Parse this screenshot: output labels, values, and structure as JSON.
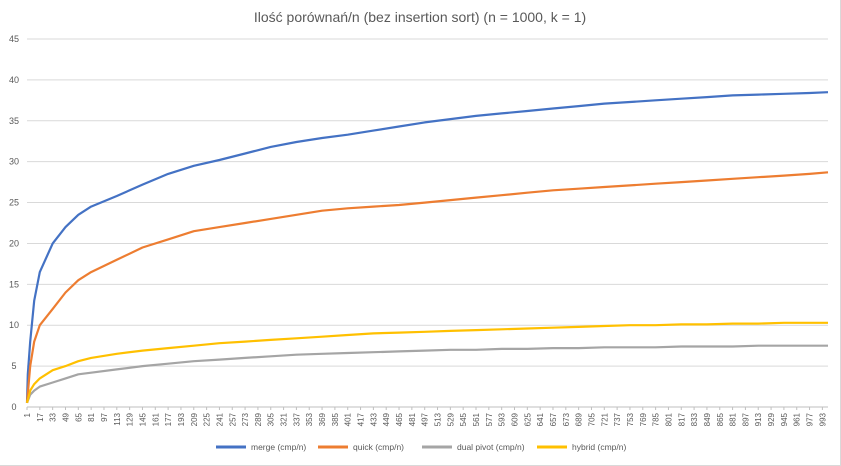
{
  "chart_data": {
    "type": "line",
    "title": "Ilość porównań/n (bez insertion sort) (n = 1000, k = 1)",
    "xlabel": "",
    "ylabel": "",
    "ylim": [
      0,
      45
    ],
    "yticks": [
      0,
      5,
      10,
      15,
      20,
      25,
      30,
      35,
      40,
      45
    ],
    "xlim": [
      1,
      1000
    ],
    "xtick_labels": [
      "1",
      "17",
      "33",
      "49",
      "65",
      "81",
      "97",
      "113",
      "129",
      "145",
      "161",
      "177",
      "193",
      "209",
      "225",
      "241",
      "257",
      "273",
      "289",
      "305",
      "321",
      "337",
      "353",
      "369",
      "385",
      "401",
      "417",
      "433",
      "449",
      "465",
      "481",
      "497",
      "513",
      "529",
      "545",
      "561",
      "577",
      "593",
      "609",
      "625",
      "641",
      "657",
      "673",
      "689",
      "705",
      "721",
      "737",
      "753",
      "769",
      "785",
      "801",
      "817",
      "833",
      "849",
      "865",
      "881",
      "897",
      "913",
      "929",
      "945",
      "961",
      "977",
      "993"
    ],
    "grid": true,
    "legend_position": "bottom",
    "series": [
      {
        "name": "merge (cmp/n)",
        "color": "#4472C4",
        "x": [
          1,
          2,
          5,
          10,
          17,
          33,
          49,
          65,
          81,
          113,
          145,
          177,
          209,
          241,
          273,
          305,
          337,
          369,
          401,
          433,
          465,
          497,
          529,
          561,
          593,
          625,
          657,
          689,
          721,
          753,
          785,
          817,
          849,
          881,
          913,
          945,
          977,
          1000
        ],
        "y": [
          0.5,
          4,
          8,
          13,
          16.5,
          20,
          22,
          23.5,
          24.5,
          25.8,
          27.2,
          28.5,
          29.5,
          30.2,
          31,
          31.8,
          32.4,
          32.9,
          33.3,
          33.8,
          34.3,
          34.8,
          35.2,
          35.6,
          35.9,
          36.2,
          36.5,
          36.8,
          37.1,
          37.3,
          37.5,
          37.7,
          37.9,
          38.1,
          38.2,
          38.3,
          38.4,
          38.5
        ]
      },
      {
        "name": "quick (cmp/n)",
        "color": "#ED7D31",
        "x": [
          1,
          5,
          10,
          17,
          33,
          49,
          65,
          81,
          113,
          145,
          177,
          209,
          241,
          273,
          305,
          337,
          369,
          401,
          433,
          465,
          497,
          529,
          561,
          593,
          625,
          657,
          689,
          721,
          753,
          785,
          817,
          849,
          881,
          913,
          945,
          977,
          1000
        ],
        "y": [
          0.5,
          5,
          8,
          10,
          12,
          14,
          15.5,
          16.5,
          18,
          19.5,
          20.5,
          21.5,
          22,
          22.5,
          23,
          23.5,
          24,
          24.3,
          24.5,
          24.7,
          25,
          25.3,
          25.6,
          25.9,
          26.2,
          26.5,
          26.7,
          26.9,
          27.1,
          27.3,
          27.5,
          27.7,
          27.9,
          28.1,
          28.3,
          28.5,
          28.7
        ]
      },
      {
        "name": "dual pivot (cmp/n)",
        "color": "#A5A5A5",
        "x": [
          1,
          5,
          10,
          17,
          33,
          49,
          65,
          81,
          113,
          145,
          177,
          209,
          241,
          273,
          305,
          337,
          369,
          401,
          433,
          465,
          497,
          529,
          561,
          593,
          625,
          657,
          689,
          721,
          753,
          785,
          817,
          849,
          881,
          913,
          945,
          977,
          1000
        ],
        "y": [
          0.5,
          1.5,
          2,
          2.5,
          3,
          3.5,
          4,
          4.2,
          4.6,
          5,
          5.3,
          5.6,
          5.8,
          6,
          6.2,
          6.4,
          6.5,
          6.6,
          6.7,
          6.8,
          6.9,
          7,
          7,
          7.1,
          7.1,
          7.2,
          7.2,
          7.3,
          7.3,
          7.3,
          7.4,
          7.4,
          7.4,
          7.5,
          7.5,
          7.5,
          7.5
        ]
      },
      {
        "name": "hybrid (cmp/n)",
        "color": "#FFC000",
        "x": [
          1,
          5,
          10,
          17,
          33,
          49,
          65,
          81,
          113,
          145,
          177,
          209,
          241,
          273,
          305,
          337,
          369,
          401,
          433,
          465,
          497,
          529,
          561,
          593,
          625,
          657,
          689,
          721,
          753,
          785,
          817,
          849,
          881,
          913,
          945,
          977,
          1000
        ],
        "y": [
          0.5,
          2,
          2.8,
          3.5,
          4.5,
          5,
          5.6,
          6,
          6.5,
          6.9,
          7.2,
          7.5,
          7.8,
          8,
          8.2,
          8.4,
          8.6,
          8.8,
          9,
          9.1,
          9.2,
          9.3,
          9.4,
          9.5,
          9.6,
          9.7,
          9.8,
          9.9,
          10,
          10,
          10.1,
          10.1,
          10.2,
          10.2,
          10.3,
          10.3,
          10.3
        ]
      }
    ]
  }
}
